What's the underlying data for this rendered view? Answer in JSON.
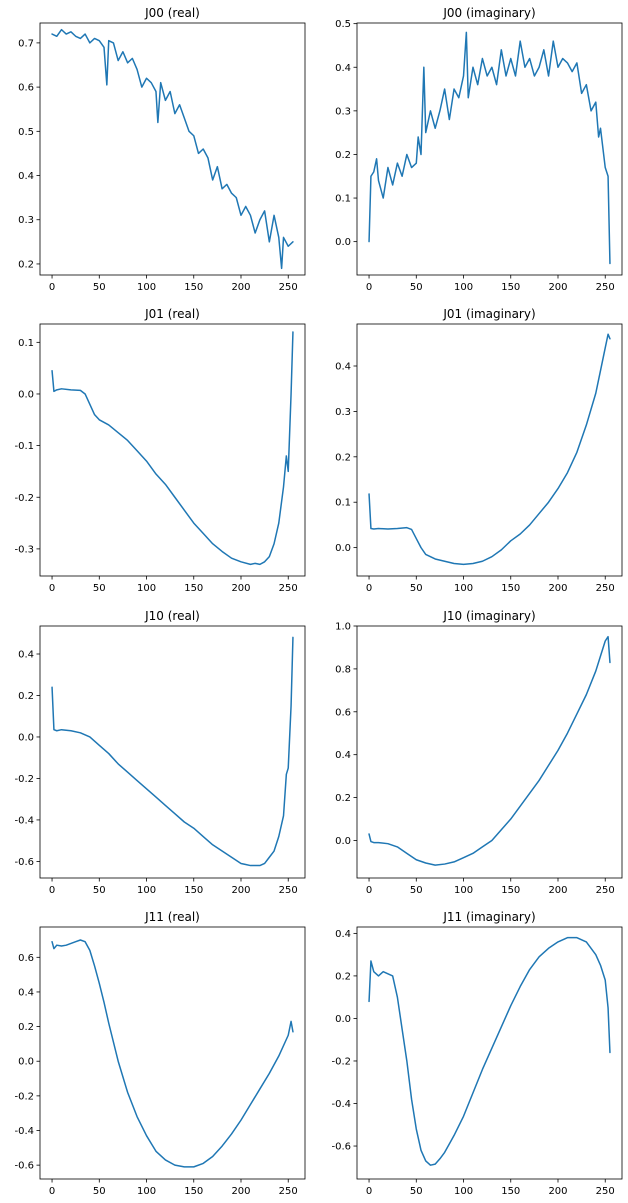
{
  "figure": {
    "line_color": "#1f77b4"
  },
  "chart_data": [
    {
      "type": "line",
      "title": "J00 (real)",
      "xlim": [
        -12.75,
        267.75
      ],
      "ylim": [
        0.175,
        0.745
      ],
      "xticks": [
        0,
        50,
        100,
        150,
        200,
        250
      ],
      "yticks": [
        0.2,
        0.3,
        0.4,
        0.5,
        0.6,
        0.7
      ],
      "x": [
        0,
        5,
        10,
        15,
        20,
        25,
        30,
        35,
        40,
        45,
        50,
        55,
        58,
        60,
        65,
        70,
        75,
        80,
        85,
        90,
        95,
        100,
        105,
        110,
        112,
        115,
        120,
        125,
        130,
        135,
        140,
        145,
        150,
        155,
        160,
        165,
        170,
        175,
        180,
        185,
        190,
        195,
        200,
        205,
        210,
        215,
        220,
        225,
        230,
        235,
        240,
        243,
        245,
        250,
        255
      ],
      "values": [
        0.72,
        0.715,
        0.73,
        0.72,
        0.725,
        0.715,
        0.71,
        0.72,
        0.7,
        0.71,
        0.705,
        0.69,
        0.605,
        0.705,
        0.7,
        0.66,
        0.68,
        0.655,
        0.665,
        0.64,
        0.6,
        0.62,
        0.61,
        0.59,
        0.52,
        0.61,
        0.57,
        0.59,
        0.54,
        0.56,
        0.53,
        0.5,
        0.49,
        0.45,
        0.46,
        0.44,
        0.39,
        0.42,
        0.37,
        0.38,
        0.36,
        0.35,
        0.31,
        0.33,
        0.31,
        0.27,
        0.3,
        0.32,
        0.25,
        0.31,
        0.26,
        0.19,
        0.26,
        0.24,
        0.25
      ]
    },
    {
      "type": "line",
      "title": "J00 (imaginary)",
      "xlim": [
        -12.75,
        267.75
      ],
      "ylim": [
        -0.0765,
        0.5015
      ],
      "xticks": [
        0,
        50,
        100,
        150,
        200,
        250
      ],
      "yticks": [
        0.0,
        0.1,
        0.2,
        0.3,
        0.4,
        0.5
      ],
      "x": [
        0,
        2,
        5,
        8,
        10,
        15,
        20,
        25,
        30,
        35,
        40,
        45,
        50,
        52,
        55,
        58,
        60,
        65,
        70,
        75,
        80,
        85,
        90,
        95,
        100,
        103,
        105,
        110,
        115,
        120,
        125,
        130,
        135,
        140,
        145,
        150,
        155,
        160,
        165,
        170,
        175,
        180,
        185,
        190,
        195,
        200,
        205,
        210,
        215,
        220,
        225,
        230,
        235,
        240,
        243,
        245,
        250,
        253,
        255
      ],
      "values": [
        0.0,
        0.15,
        0.16,
        0.19,
        0.14,
        0.1,
        0.17,
        0.13,
        0.18,
        0.15,
        0.2,
        0.17,
        0.18,
        0.24,
        0.2,
        0.4,
        0.25,
        0.3,
        0.26,
        0.3,
        0.35,
        0.28,
        0.35,
        0.33,
        0.38,
        0.48,
        0.33,
        0.4,
        0.36,
        0.42,
        0.38,
        0.4,
        0.36,
        0.44,
        0.38,
        0.42,
        0.38,
        0.46,
        0.4,
        0.42,
        0.38,
        0.4,
        0.44,
        0.38,
        0.46,
        0.4,
        0.42,
        0.41,
        0.39,
        0.41,
        0.34,
        0.36,
        0.3,
        0.32,
        0.24,
        0.26,
        0.17,
        0.15,
        -0.05
      ]
    },
    {
      "type": "line",
      "title": "J01 (real)",
      "xlim": [
        -12.75,
        267.75
      ],
      "ylim": [
        -0.3525,
        0.1355
      ],
      "xticks": [
        0,
        50,
        100,
        150,
        200,
        250
      ],
      "yticks": [
        -0.3,
        -0.2,
        -0.1,
        0.0,
        0.1
      ],
      "x": [
        0,
        2,
        5,
        10,
        20,
        30,
        35,
        40,
        45,
        50,
        60,
        70,
        80,
        90,
        100,
        110,
        120,
        130,
        140,
        150,
        160,
        170,
        180,
        190,
        200,
        210,
        215,
        220,
        225,
        230,
        235,
        240,
        245,
        248,
        250,
        253,
        255
      ],
      "values": [
        0.045,
        0.005,
        0.008,
        0.01,
        0.008,
        0.007,
        0.0,
        -0.02,
        -0.04,
        -0.05,
        -0.06,
        -0.075,
        -0.09,
        -0.11,
        -0.13,
        -0.155,
        -0.175,
        -0.2,
        -0.225,
        -0.25,
        -0.27,
        -0.29,
        -0.305,
        -0.318,
        -0.325,
        -0.33,
        -0.328,
        -0.33,
        -0.325,
        -0.315,
        -0.29,
        -0.25,
        -0.18,
        -0.12,
        -0.15,
        0.0,
        0.12
      ]
    },
    {
      "type": "line",
      "title": "J01 (imaginary)",
      "xlim": [
        -12.75,
        267.75
      ],
      "ylim": [
        -0.0625,
        0.4925
      ],
      "xticks": [
        0,
        50,
        100,
        150,
        200,
        250
      ],
      "yticks": [
        0.0,
        0.1,
        0.2,
        0.3,
        0.4
      ],
      "x": [
        0,
        2,
        5,
        10,
        20,
        30,
        40,
        45,
        50,
        55,
        60,
        70,
        80,
        90,
        100,
        110,
        120,
        130,
        140,
        150,
        160,
        170,
        180,
        190,
        200,
        210,
        220,
        230,
        240,
        245,
        250,
        253,
        255
      ],
      "values": [
        0.118,
        0.042,
        0.041,
        0.042,
        0.041,
        0.042,
        0.044,
        0.04,
        0.02,
        0.0,
        -0.015,
        -0.025,
        -0.03,
        -0.035,
        -0.037,
        -0.035,
        -0.03,
        -0.02,
        -0.005,
        0.015,
        0.03,
        0.05,
        0.075,
        0.1,
        0.13,
        0.165,
        0.21,
        0.27,
        0.34,
        0.39,
        0.44,
        0.47,
        0.46
      ]
    },
    {
      "type": "line",
      "title": "J10 (real)",
      "xlim": [
        -12.75,
        267.75
      ],
      "ylim": [
        -0.68,
        0.535
      ],
      "xticks": [
        0,
        50,
        100,
        150,
        200,
        250
      ],
      "yticks": [
        -0.6,
        -0.4,
        -0.2,
        0.0,
        0.2,
        0.4
      ],
      "x": [
        0,
        2,
        5,
        10,
        20,
        30,
        40,
        50,
        60,
        70,
        80,
        90,
        100,
        110,
        120,
        130,
        140,
        150,
        160,
        170,
        180,
        190,
        200,
        205,
        210,
        220,
        225,
        230,
        235,
        240,
        245,
        248,
        250,
        253,
        255
      ],
      "values": [
        0.24,
        0.035,
        0.03,
        0.035,
        0.03,
        0.02,
        0.0,
        -0.04,
        -0.08,
        -0.13,
        -0.17,
        -0.21,
        -0.25,
        -0.29,
        -0.33,
        -0.37,
        -0.41,
        -0.44,
        -0.48,
        -0.52,
        -0.55,
        -0.58,
        -0.61,
        -0.615,
        -0.62,
        -0.62,
        -0.61,
        -0.58,
        -0.55,
        -0.48,
        -0.38,
        -0.18,
        -0.15,
        0.15,
        0.48
      ]
    },
    {
      "type": "line",
      "title": "J10 (imaginary)",
      "xlim": [
        -12.75,
        267.75
      ],
      "ylim": [
        -0.175,
        1.0
      ],
      "xticks": [
        0,
        50,
        100,
        150,
        200,
        250
      ],
      "yticks": [
        0.0,
        0.2,
        0.4,
        0.6,
        0.8,
        1.0
      ],
      "x": [
        0,
        2,
        5,
        10,
        20,
        30,
        40,
        50,
        60,
        70,
        80,
        90,
        100,
        110,
        120,
        130,
        140,
        150,
        160,
        170,
        180,
        190,
        200,
        210,
        220,
        230,
        240,
        245,
        250,
        253,
        255
      ],
      "values": [
        0.03,
        -0.005,
        -0.01,
        -0.01,
        -0.015,
        -0.03,
        -0.06,
        -0.09,
        -0.105,
        -0.115,
        -0.11,
        -0.1,
        -0.08,
        -0.06,
        -0.03,
        0.0,
        0.05,
        0.1,
        0.16,
        0.22,
        0.28,
        0.35,
        0.42,
        0.5,
        0.59,
        0.68,
        0.79,
        0.86,
        0.93,
        0.95,
        0.83
      ]
    },
    {
      "type": "line",
      "title": "J11 (real)",
      "xlim": [
        -12.75,
        267.75
      ],
      "ylim": [
        -0.68,
        0.775
      ],
      "xticks": [
        0,
        50,
        100,
        150,
        200,
        250
      ],
      "yticks": [
        -0.6,
        -0.4,
        -0.2,
        0.0,
        0.2,
        0.4,
        0.6
      ],
      "x": [
        0,
        2,
        5,
        10,
        15,
        20,
        25,
        30,
        35,
        40,
        45,
        50,
        55,
        60,
        70,
        80,
        90,
        100,
        110,
        120,
        130,
        140,
        150,
        160,
        170,
        180,
        190,
        200,
        210,
        220,
        230,
        240,
        250,
        253,
        255
      ],
      "values": [
        0.69,
        0.65,
        0.67,
        0.665,
        0.67,
        0.68,
        0.69,
        0.7,
        0.69,
        0.64,
        0.55,
        0.45,
        0.34,
        0.22,
        0.0,
        -0.18,
        -0.32,
        -0.43,
        -0.52,
        -0.57,
        -0.6,
        -0.61,
        -0.61,
        -0.59,
        -0.55,
        -0.49,
        -0.42,
        -0.34,
        -0.25,
        -0.16,
        -0.07,
        0.03,
        0.15,
        0.23,
        0.17
      ]
    },
    {
      "type": "line",
      "title": "J11 (imaginary)",
      "xlim": [
        -12.75,
        267.75
      ],
      "ylim": [
        -0.755,
        0.43
      ],
      "xticks": [
        0,
        50,
        100,
        150,
        200,
        250
      ],
      "yticks": [
        -0.6,
        -0.4,
        -0.2,
        0.0,
        0.2,
        0.4
      ],
      "x": [
        0,
        2,
        5,
        10,
        15,
        20,
        25,
        30,
        35,
        40,
        45,
        50,
        55,
        60,
        65,
        70,
        75,
        80,
        90,
        100,
        110,
        120,
        130,
        140,
        150,
        160,
        170,
        180,
        190,
        200,
        210,
        220,
        230,
        240,
        245,
        250,
        253,
        255
      ],
      "values": [
        0.08,
        0.27,
        0.22,
        0.2,
        0.22,
        0.21,
        0.2,
        0.1,
        -0.05,
        -0.2,
        -0.38,
        -0.52,
        -0.62,
        -0.67,
        -0.69,
        -0.685,
        -0.66,
        -0.63,
        -0.55,
        -0.46,
        -0.35,
        -0.24,
        -0.14,
        -0.04,
        0.06,
        0.15,
        0.23,
        0.29,
        0.33,
        0.36,
        0.38,
        0.38,
        0.36,
        0.3,
        0.25,
        0.18,
        0.05,
        -0.16
      ]
    }
  ]
}
